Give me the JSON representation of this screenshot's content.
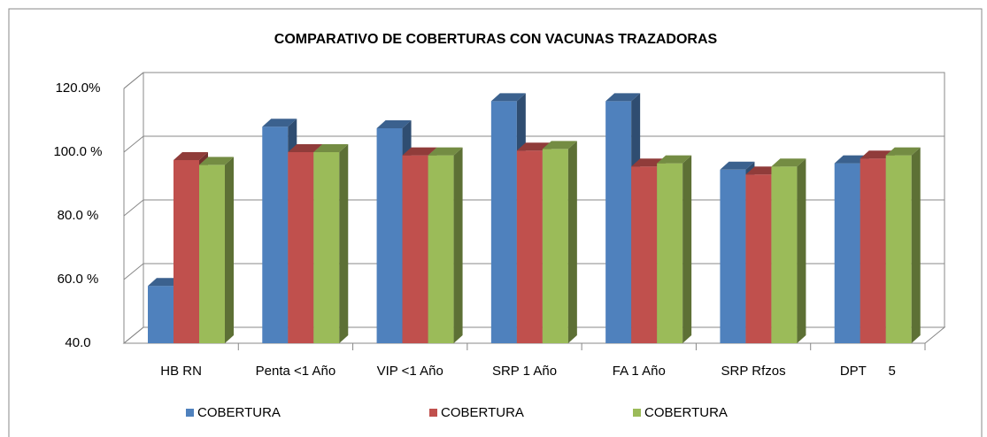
{
  "chart_data": {
    "type": "bar3d",
    "title": "COMPARATIVO DE COBERTURAS CON VACUNAS TRAZADORAS",
    "categories": [
      "HB RN",
      "Penta <1 Año",
      "VIP <1 Año",
      "SRP 1 Año",
      "FA 1 Año",
      "SRP Rfzos",
      "DPT      5"
    ],
    "series": [
      {
        "name": "COBERTURA",
        "color": "#4f81bd",
        "values": [
          58,
          108,
          107.5,
          116,
          116,
          94.5,
          96.5
        ]
      },
      {
        "name": "COBERTURA",
        "color": "#c0504d",
        "values": [
          97.5,
          100,
          99,
          100.5,
          95.5,
          93,
          98
        ]
      },
      {
        "name": "COBERTURA",
        "color": "#9bbb59",
        "values": [
          96,
          100,
          99,
          101,
          96.5,
          95.5,
          99
        ]
      }
    ],
    "ylim": [
      40,
      120
    ],
    "yticks": [
      {
        "value": 40,
        "label": "40.0"
      },
      {
        "value": 60,
        "label": "60.0 %"
      },
      {
        "value": 80,
        "label": "80.0 %"
      },
      {
        "value": 100,
        "label": "100.0 %"
      },
      {
        "value": 120,
        "label": "120.0%"
      }
    ],
    "grid": true,
    "legend": "bottom"
  }
}
